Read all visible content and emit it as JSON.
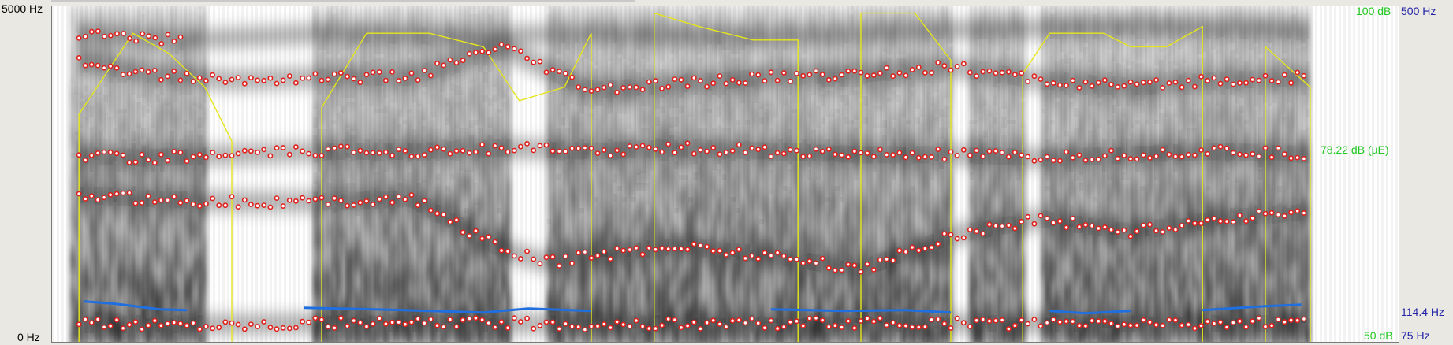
{
  "axes": {
    "freq_top": "5000 Hz",
    "freq_bottom": "0 Hz",
    "intensity_top": "100 dB",
    "intensity_bottom": "50 dB",
    "pitch_top": "500 Hz",
    "pitch_bottom": "75 Hz",
    "intensity_cursor": "78.22 dB (µE)",
    "pitch_cursor": "114.4 Hz"
  },
  "colors": {
    "formant": "#e0201c",
    "intensity": "#e6e61a",
    "pitch": "#1f6fe0",
    "spectrogram_dark": "#141414",
    "intensity_label": "#21c821",
    "pitch_label": "#2323a8"
  },
  "chart_data": {
    "type": "line",
    "title": "",
    "xlabel": "",
    "ylabel": "",
    "series": [
      {
        "name": "",
        "values": [
          [
            0.03,
            84
          ],
          [
            0.06,
            90
          ],
          [
            0.09,
            96
          ],
          [
            0.13,
            93
          ],
          [
            0.17,
            88
          ],
          [
            0.2,
            80
          ],
          [
            0.3,
            85
          ],
          [
            0.35,
            96
          ],
          [
            0.42,
            96
          ],
          [
            0.48,
            94
          ],
          [
            0.52,
            86
          ],
          [
            0.57,
            88
          ],
          [
            0.6,
            96
          ],
          [
            0.67,
            99
          ],
          [
            0.72,
            97
          ],
          [
            0.78,
            95
          ],
          [
            0.83,
            95
          ],
          [
            0.9,
            99
          ],
          [
            0.96,
            99
          ],
          [
            1.0,
            92
          ],
          [
            1.08,
            90
          ],
          [
            1.11,
            96
          ],
          [
            1.17,
            96
          ],
          [
            1.2,
            94
          ],
          [
            1.24,
            94
          ],
          [
            1.28,
            97
          ],
          [
            1.35,
            94
          ],
          [
            1.4,
            88
          ]
        ]
      },
      {
        "name": "",
        "values": [
          [
            0.035,
            128
          ],
          [
            0.07,
            125
          ],
          [
            0.12,
            118
          ],
          [
            0.15,
            117
          ],
          [
            0.28,
            120
          ],
          [
            0.36,
            118
          ],
          [
            0.42,
            116
          ],
          [
            0.48,
            114
          ],
          [
            0.53,
            119
          ],
          [
            0.6,
            116
          ],
          [
            0.7,
            116
          ],
          [
            0.8,
            118
          ],
          [
            0.88,
            116
          ],
          [
            0.95,
            117
          ],
          [
            1.0,
            114
          ],
          [
            1.11,
            116
          ],
          [
            1.15,
            113
          ],
          [
            1.2,
            116
          ],
          [
            1.28,
            117
          ],
          [
            1.35,
            122
          ],
          [
            1.39,
            124
          ]
        ]
      }
    ],
    "formants": {
      "F1": [
        [
          0.03,
          280
        ],
        [
          0.1,
          290
        ],
        [
          0.2,
          285
        ],
        [
          0.3,
          300
        ],
        [
          0.4,
          300
        ],
        [
          0.5,
          300
        ],
        [
          0.6,
          280
        ],
        [
          0.7,
          290
        ],
        [
          0.8,
          300
        ],
        [
          0.9,
          300
        ],
        [
          1.0,
          300
        ],
        [
          1.1,
          290
        ],
        [
          1.2,
          300
        ],
        [
          1.3,
          300
        ],
        [
          1.4,
          290
        ]
      ],
      "F2": [
        [
          0.03,
          2200
        ],
        [
          0.1,
          2150
        ],
        [
          0.2,
          2100
        ],
        [
          0.3,
          2100
        ],
        [
          0.4,
          2150
        ],
        [
          0.5,
          1400
        ],
        [
          0.55,
          1200
        ],
        [
          0.6,
          1300
        ],
        [
          0.7,
          1450
        ],
        [
          0.8,
          1300
        ],
        [
          0.9,
          1100
        ],
        [
          1.0,
          1600
        ],
        [
          1.1,
          1850
        ],
        [
          1.2,
          1650
        ],
        [
          1.3,
          1850
        ],
        [
          1.4,
          1950
        ]
      ],
      "F3": [
        [
          0.03,
          2800
        ],
        [
          0.1,
          2750
        ],
        [
          0.2,
          2800
        ],
        [
          0.3,
          2850
        ],
        [
          0.4,
          2850
        ],
        [
          0.5,
          2900
        ],
        [
          0.6,
          2850
        ],
        [
          0.7,
          2900
        ],
        [
          0.8,
          2850
        ],
        [
          0.9,
          2800
        ],
        [
          1.0,
          2800
        ],
        [
          1.1,
          2750
        ],
        [
          1.2,
          2800
        ],
        [
          1.3,
          2850
        ],
        [
          1.4,
          2800
        ]
      ],
      "F4": [
        [
          0.03,
          4200
        ],
        [
          0.1,
          4000
        ],
        [
          0.2,
          3900
        ],
        [
          0.3,
          3950
        ],
        [
          0.4,
          3950
        ],
        [
          0.5,
          4400
        ],
        [
          0.6,
          3750
        ],
        [
          0.7,
          3850
        ],
        [
          0.8,
          3950
        ],
        [
          0.9,
          4000
        ],
        [
          1.0,
          4100
        ],
        [
          1.1,
          3900
        ],
        [
          1.2,
          3800
        ],
        [
          1.3,
          3900
        ],
        [
          1.4,
          3950
        ]
      ],
      "F5": [
        [
          0.03,
          4600
        ],
        [
          0.15,
          4500
        ],
        [
          0.3,
          4600
        ],
        [
          0.45,
          4550
        ],
        [
          0.6,
          4600
        ],
        [
          0.8,
          4550
        ],
        [
          1.0,
          4650
        ],
        [
          1.2,
          4700
        ],
        [
          1.4,
          4650
        ]
      ]
    },
    "spectrogram_dark_regions": [
      [
        0.02,
        0.17
      ],
      [
        0.29,
        0.51
      ],
      [
        0.55,
        1.0
      ],
      [
        1.02,
        1.08
      ],
      [
        1.1,
        1.4
      ]
    ],
    "xlim": [
      0,
      1.5
    ],
    "ylim_freq": [
      0,
      5000
    ],
    "ylim_intensity": [
      50,
      100
    ],
    "ylim_pitch": [
      75,
      500
    ]
  }
}
